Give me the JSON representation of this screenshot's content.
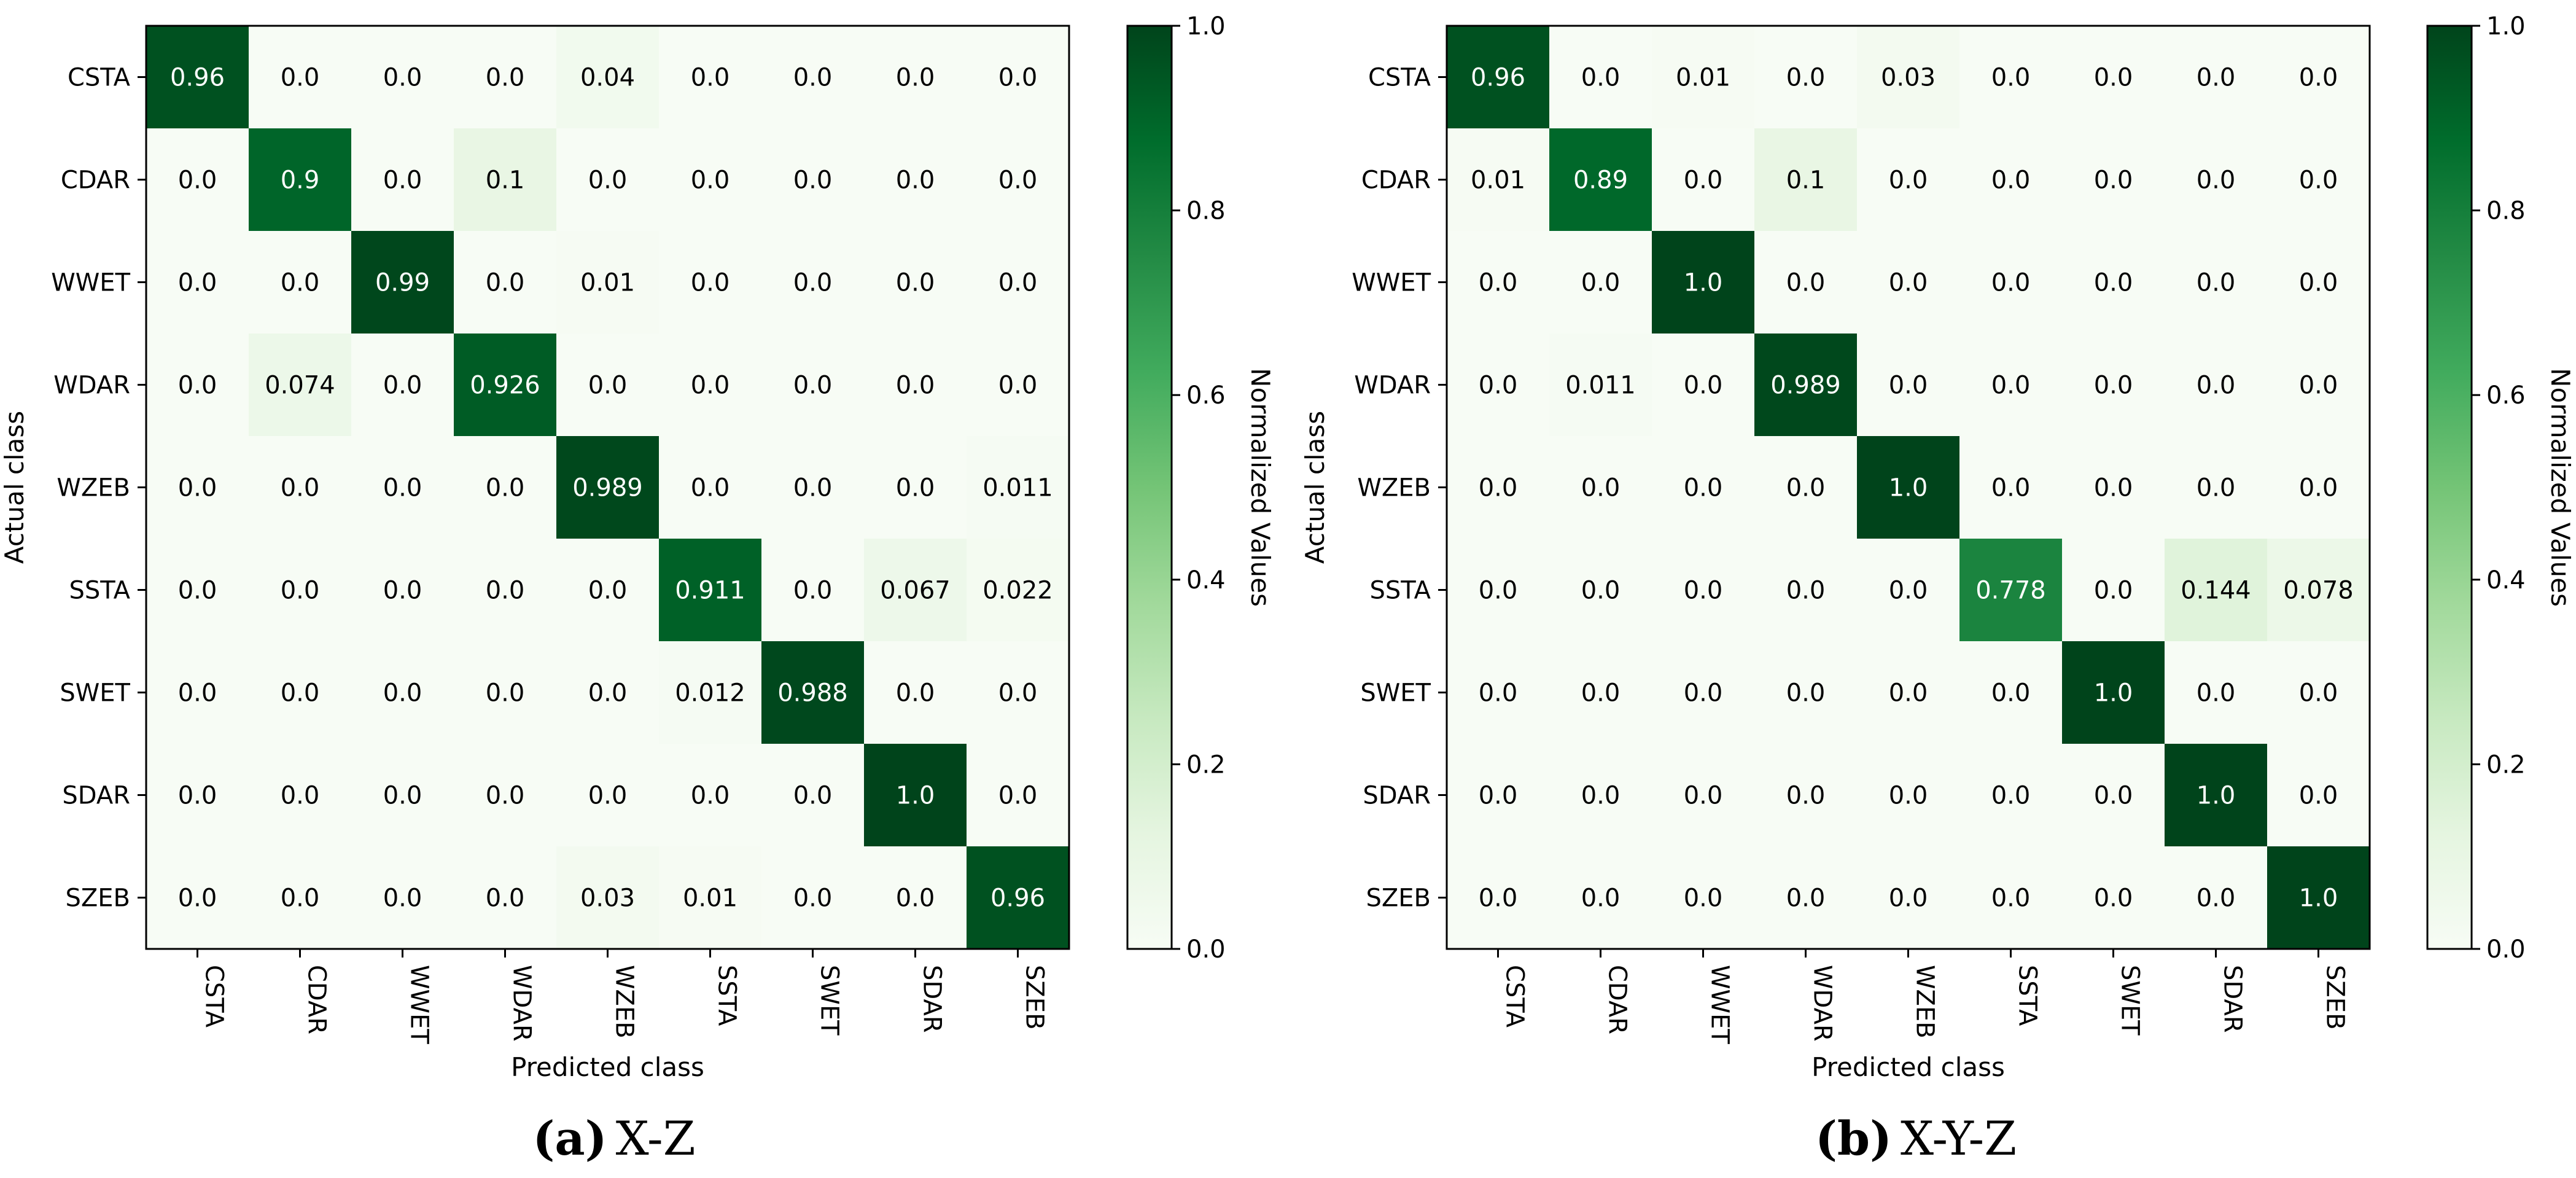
{
  "chart_data": [
    {
      "type": "heatmap",
      "caption_label": "(a)",
      "caption_text": "X-Z",
      "xlabel": "Predicted class",
      "ylabel": "Actual class",
      "colorbar_label": "Normalized Values",
      "colorbar_ticks": [
        "0.0",
        "0.2",
        "0.4",
        "0.6",
        "0.8",
        "1.0"
      ],
      "colorbar_tick_values": [
        0,
        0.2,
        0.4,
        0.6,
        0.8,
        1.0
      ],
      "vmin": 0,
      "vmax": 1,
      "colormap": "Greens",
      "row_labels": [
        "CSTA",
        "CDAR",
        "WWET",
        "WDAR",
        "WZEB",
        "SSTA",
        "SWET",
        "SDAR",
        "SZEB"
      ],
      "col_labels": [
        "CSTA",
        "CDAR",
        "WWET",
        "WDAR",
        "WZEB",
        "SSTA",
        "SWET",
        "SDAR",
        "SZEB"
      ],
      "values": [
        [
          0.96,
          0.0,
          0.0,
          0.0,
          0.04,
          0.0,
          0.0,
          0.0,
          0.0
        ],
        [
          0.0,
          0.9,
          0.0,
          0.1,
          0.0,
          0.0,
          0.0,
          0.0,
          0.0
        ],
        [
          0.0,
          0.0,
          0.99,
          0.0,
          0.01,
          0.0,
          0.0,
          0.0,
          0.0
        ],
        [
          0.0,
          0.074,
          0.0,
          0.926,
          0.0,
          0.0,
          0.0,
          0.0,
          0.0
        ],
        [
          0.0,
          0.0,
          0.0,
          0.0,
          0.989,
          0.0,
          0.0,
          0.0,
          0.011
        ],
        [
          0.0,
          0.0,
          0.0,
          0.0,
          0.0,
          0.911,
          0.0,
          0.067,
          0.022
        ],
        [
          0.0,
          0.0,
          0.0,
          0.0,
          0.0,
          0.012,
          0.988,
          0.0,
          0.0
        ],
        [
          0.0,
          0.0,
          0.0,
          0.0,
          0.0,
          0.0,
          0.0,
          1.0,
          0.0
        ],
        [
          0.0,
          0.0,
          0.0,
          0.0,
          0.03,
          0.01,
          0.0,
          0.0,
          0.96
        ]
      ],
      "labels": [
        [
          "0.96",
          "0.0",
          "0.0",
          "0.0",
          "0.04",
          "0.0",
          "0.0",
          "0.0",
          "0.0"
        ],
        [
          "0.0",
          "0.9",
          "0.0",
          "0.1",
          "0.0",
          "0.0",
          "0.0",
          "0.0",
          "0.0"
        ],
        [
          "0.0",
          "0.0",
          "0.99",
          "0.0",
          "0.01",
          "0.0",
          "0.0",
          "0.0",
          "0.0"
        ],
        [
          "0.0",
          "0.074",
          "0.0",
          "0.926",
          "0.0",
          "0.0",
          "0.0",
          "0.0",
          "0.0"
        ],
        [
          "0.0",
          "0.0",
          "0.0",
          "0.0",
          "0.989",
          "0.0",
          "0.0",
          "0.0",
          "0.011"
        ],
        [
          "0.0",
          "0.0",
          "0.0",
          "0.0",
          "0.0",
          "0.911",
          "0.0",
          "0.067",
          "0.022"
        ],
        [
          "0.0",
          "0.0",
          "0.0",
          "0.0",
          "0.0",
          "0.012",
          "0.988",
          "0.0",
          "0.0"
        ],
        [
          "0.0",
          "0.0",
          "0.0",
          "0.0",
          "0.0",
          "0.0",
          "0.0",
          "1.0",
          "0.0"
        ],
        [
          "0.0",
          "0.0",
          "0.0",
          "0.0",
          "0.03",
          "0.01",
          "0.0",
          "0.0",
          "0.96"
        ]
      ]
    },
    {
      "type": "heatmap",
      "caption_label": "(b)",
      "caption_text": "X-Y-Z",
      "xlabel": "Predicted class",
      "ylabel": "Actual class",
      "colorbar_label": "Normalized Values",
      "colorbar_ticks": [
        "0.0",
        "0.2",
        "0.4",
        "0.6",
        "0.8",
        "1.0"
      ],
      "colorbar_tick_values": [
        0,
        0.2,
        0.4,
        0.6,
        0.8,
        1.0
      ],
      "vmin": 0,
      "vmax": 1,
      "colormap": "Greens",
      "row_labels": [
        "CSTA",
        "CDAR",
        "WWET",
        "WDAR",
        "WZEB",
        "SSTA",
        "SWET",
        "SDAR",
        "SZEB"
      ],
      "col_labels": [
        "CSTA",
        "CDAR",
        "WWET",
        "WDAR",
        "WZEB",
        "SSTA",
        "SWET",
        "SDAR",
        "SZEB"
      ],
      "values": [
        [
          0.96,
          0.0,
          0.01,
          0.0,
          0.03,
          0.0,
          0.0,
          0.0,
          0.0
        ],
        [
          0.01,
          0.89,
          0.0,
          0.1,
          0.0,
          0.0,
          0.0,
          0.0,
          0.0
        ],
        [
          0.0,
          0.0,
          1.0,
          0.0,
          0.0,
          0.0,
          0.0,
          0.0,
          0.0
        ],
        [
          0.0,
          0.011,
          0.0,
          0.989,
          0.0,
          0.0,
          0.0,
          0.0,
          0.0
        ],
        [
          0.0,
          0.0,
          0.0,
          0.0,
          1.0,
          0.0,
          0.0,
          0.0,
          0.0
        ],
        [
          0.0,
          0.0,
          0.0,
          0.0,
          0.0,
          0.778,
          0.0,
          0.144,
          0.078
        ],
        [
          0.0,
          0.0,
          0.0,
          0.0,
          0.0,
          0.0,
          1.0,
          0.0,
          0.0
        ],
        [
          0.0,
          0.0,
          0.0,
          0.0,
          0.0,
          0.0,
          0.0,
          1.0,
          0.0
        ],
        [
          0.0,
          0.0,
          0.0,
          0.0,
          0.0,
          0.0,
          0.0,
          0.0,
          1.0
        ]
      ],
      "labels": [
        [
          "0.96",
          "0.0",
          "0.01",
          "0.0",
          "0.03",
          "0.0",
          "0.0",
          "0.0",
          "0.0"
        ],
        [
          "0.01",
          "0.89",
          "0.0",
          "0.1",
          "0.0",
          "0.0",
          "0.0",
          "0.0",
          "0.0"
        ],
        [
          "0.0",
          "0.0",
          "1.0",
          "0.0",
          "0.0",
          "0.0",
          "0.0",
          "0.0",
          "0.0"
        ],
        [
          "0.0",
          "0.011",
          "0.0",
          "0.989",
          "0.0",
          "0.0",
          "0.0",
          "0.0",
          "0.0"
        ],
        [
          "0.0",
          "0.0",
          "0.0",
          "0.0",
          "1.0",
          "0.0",
          "0.0",
          "0.0",
          "0.0"
        ],
        [
          "0.0",
          "0.0",
          "0.0",
          "0.0",
          "0.0",
          "0.778",
          "0.0",
          "0.144",
          "0.078"
        ],
        [
          "0.0",
          "0.0",
          "0.0",
          "0.0",
          "0.0",
          "0.0",
          "1.0",
          "0.0",
          "0.0"
        ],
        [
          "0.0",
          "0.0",
          "0.0",
          "0.0",
          "0.0",
          "0.0",
          "0.0",
          "1.0",
          "0.0"
        ],
        [
          "0.0",
          "0.0",
          "0.0",
          "0.0",
          "0.0",
          "0.0",
          "0.0",
          "0.0",
          "1.0"
        ]
      ]
    }
  ]
}
